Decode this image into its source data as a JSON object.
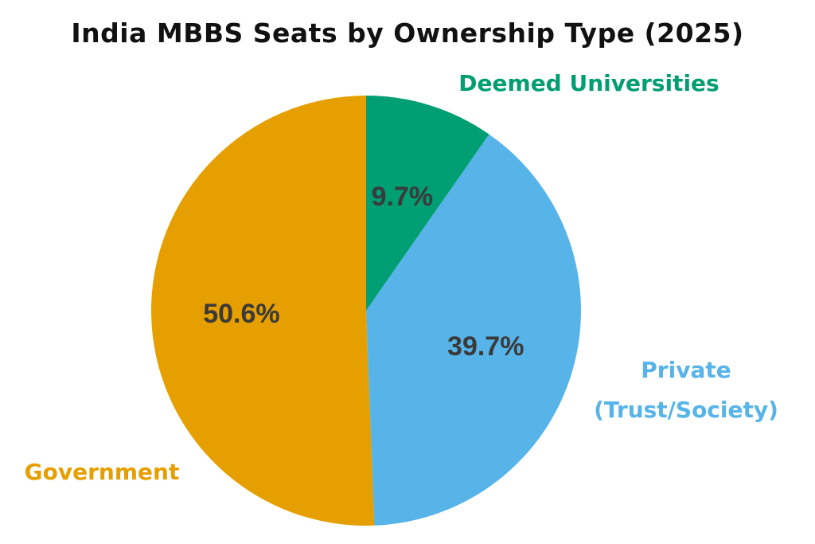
{
  "chart_data": {
    "type": "pie",
    "title": "India MBBS Seats by Ownership Type (2025)",
    "start_angle": "12 o'clock, clockwise",
    "slices": [
      {
        "label": "Deemed Universities",
        "value": 9.7,
        "value_label": "9.7%",
        "color": "#009E73"
      },
      {
        "label_lines": [
          "Private",
          "(Trust/Society)"
        ],
        "label": "Private (Trust/Society)",
        "value": 39.7,
        "value_label": "39.7%",
        "color": "#56B4E9"
      },
      {
        "label": "Government",
        "value": 50.6,
        "value_label": "50.6%",
        "color": "#E69F00"
      }
    ]
  }
}
